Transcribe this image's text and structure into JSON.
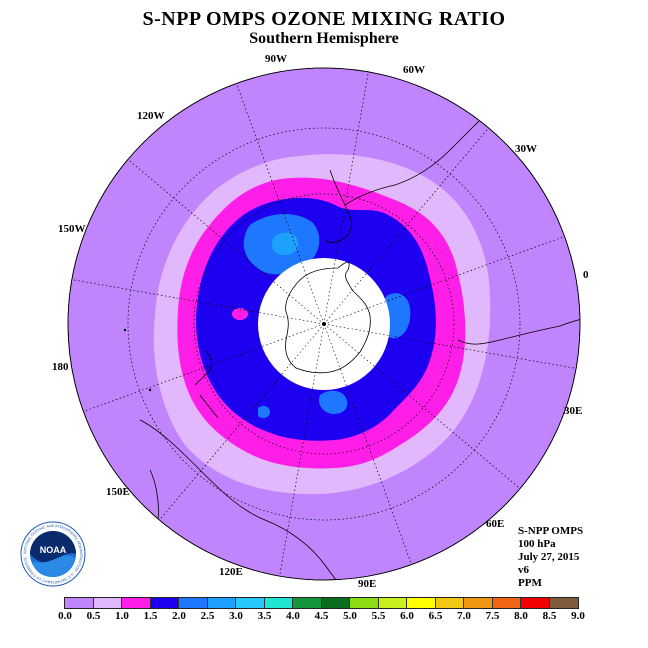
{
  "title": "S-NPP OMPS OZONE MIXING RATIO",
  "subtitle": "Southern Hemisphere",
  "longitude_labels": {
    "lon_90w": "90W",
    "lon_60w": "60W",
    "lon_30w": "30W",
    "lon_0": "0",
    "lon_30e": "30E",
    "lon_60e": "60E",
    "lon_90e": "90E",
    "lon_120e": "120E",
    "lon_150e": "150E",
    "lon_180": "180",
    "lon_150w": "150W",
    "lon_120w": "120W"
  },
  "info": {
    "instrument": "S-NPP OMPS",
    "level": "100 hPa",
    "date": "July 27, 2015",
    "version": "v6",
    "units": "PPM"
  },
  "logo": {
    "text": "NOAA",
    "ring_text": "NATIONAL OCEANIC AND ATMOSPHERIC ADMINISTRATION · U.S. DEPARTMENT OF COMMERCE"
  },
  "colorbar": {
    "colors": [
      "#c084fc",
      "#e2b8fc",
      "#ff1ee8",
      "#1e00f0",
      "#1e78ff",
      "#1ea0ff",
      "#28c8ff",
      "#1ee6d2",
      "#14963c",
      "#0a6e1e",
      "#8cdc14",
      "#c8f01e",
      "#ffff00",
      "#f0c814",
      "#f09614",
      "#f06414",
      "#f00000",
      "#825a3c"
    ],
    "ticks": [
      "0.0",
      "0.5",
      "1.0",
      "1.5",
      "2.0",
      "2.5",
      "3.0",
      "3.5",
      "4.0",
      "4.5",
      "5.0",
      "5.5",
      "6.0",
      "6.5",
      "7.0",
      "7.5",
      "8.0",
      "8.5",
      "9.0"
    ]
  },
  "field_colors": {
    "outside": "#c084fc",
    "band_0_5_1_0": "#e2b8fc",
    "band_1_0_1_5": "#ff1ee8",
    "band_1_5_2_0": "#1e00f0",
    "band_2_0_2_5": "#1e78ff",
    "band_2_5_3_0": "#1ea0ff",
    "missing": "#ffffff"
  }
}
